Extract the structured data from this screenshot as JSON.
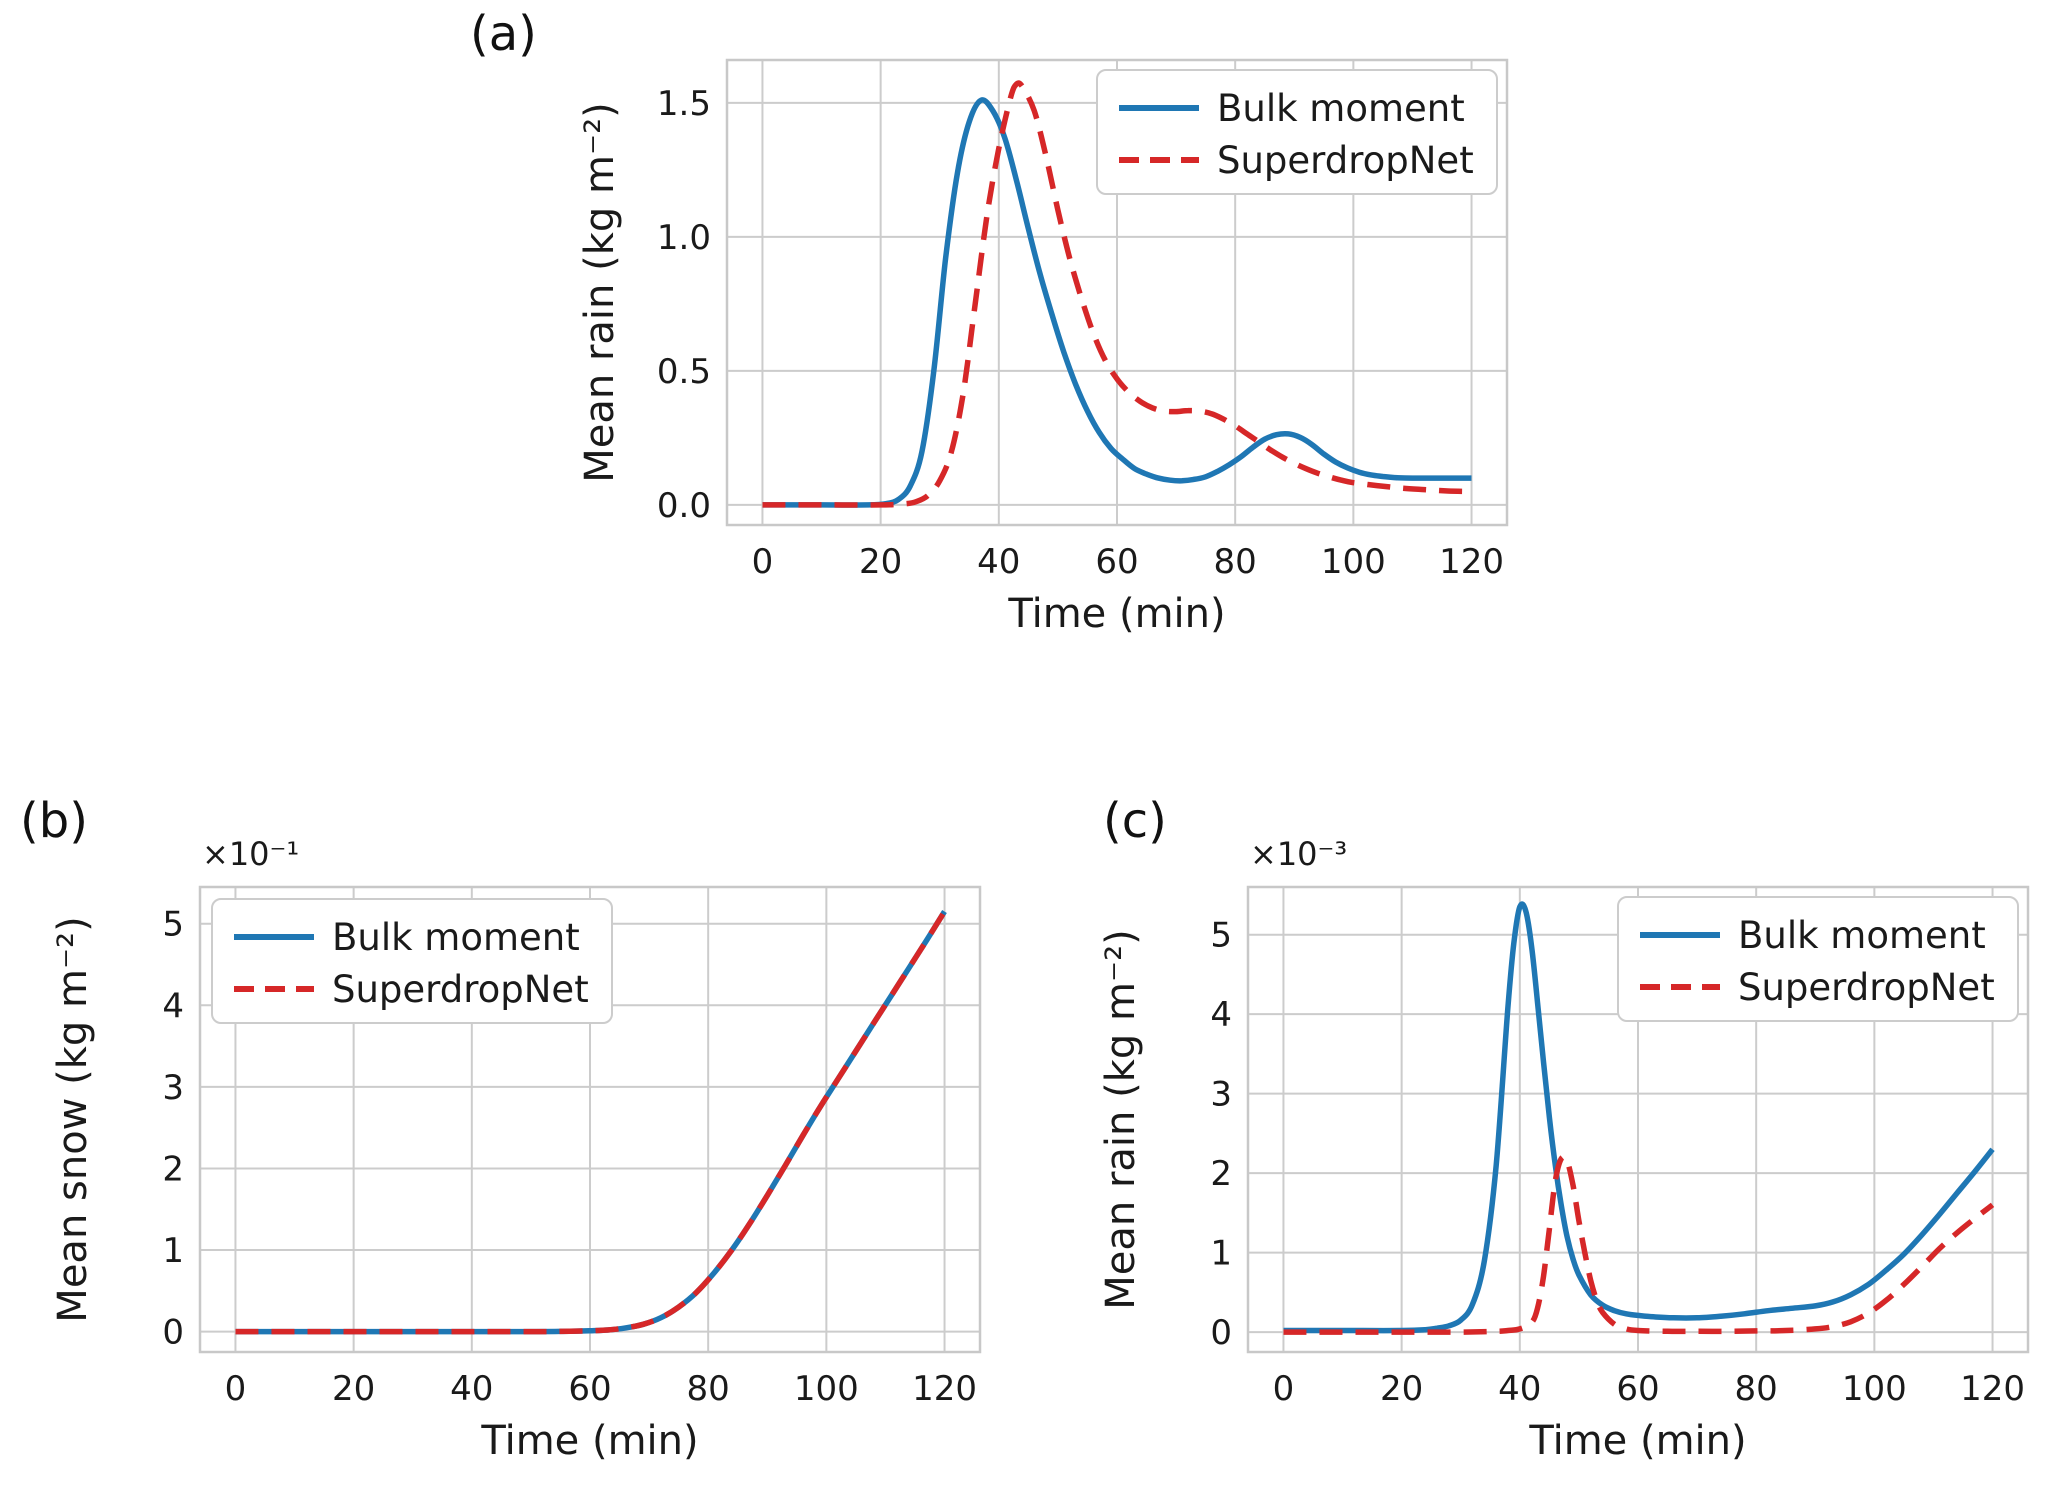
{
  "figure": {
    "background": "#ffffff",
    "text_color": "#1a1a1a",
    "grid_color": "#cccccc",
    "spine_color": "#c8c8c8"
  },
  "chart_data": [
    {
      "id": "a",
      "panel_label": "(a)",
      "type": "line",
      "xlabel": "Time (min)",
      "ylabel": "Mean rain (kg m⁻²)",
      "offset_text": "",
      "xlim": [
        -6,
        126
      ],
      "ylim": [
        -0.075,
        1.66
      ],
      "xticks": [
        0,
        20,
        40,
        60,
        80,
        100,
        120
      ],
      "yticks": [
        0.0,
        0.5,
        1.0,
        1.5
      ],
      "ytick_labels": [
        "0.0",
        "0.5",
        "1.0",
        "1.5"
      ],
      "grid": true,
      "legend": {
        "position": "top-right"
      },
      "series": [
        {
          "name": "Bulk moment",
          "color": "#1f77b4",
          "style": "solid",
          "points": [
            [
              0,
              0
            ],
            [
              10,
              0
            ],
            [
              18,
              0
            ],
            [
              21,
              0.005
            ],
            [
              23,
              0.02
            ],
            [
              25,
              0.07
            ],
            [
              27,
              0.2
            ],
            [
              29,
              0.5
            ],
            [
              31,
              0.92
            ],
            [
              33,
              1.24
            ],
            [
              35,
              1.43
            ],
            [
              37,
              1.51
            ],
            [
              39,
              1.47
            ],
            [
              41,
              1.37
            ],
            [
              43,
              1.21
            ],
            [
              45,
              1.03
            ],
            [
              47,
              0.86
            ],
            [
              49,
              0.71
            ],
            [
              51,
              0.57
            ],
            [
              53,
              0.45
            ],
            [
              55,
              0.35
            ],
            [
              57,
              0.27
            ],
            [
              59,
              0.21
            ],
            [
              61,
              0.17
            ],
            [
              63,
              0.135
            ],
            [
              65,
              0.115
            ],
            [
              67,
              0.1
            ],
            [
              69,
              0.092
            ],
            [
              71,
              0.09
            ],
            [
              73,
              0.095
            ],
            [
              75,
              0.105
            ],
            [
              77,
              0.125
            ],
            [
              79,
              0.15
            ],
            [
              81,
              0.18
            ],
            [
              83,
              0.215
            ],
            [
              85,
              0.245
            ],
            [
              87,
              0.262
            ],
            [
              89,
              0.265
            ],
            [
              91,
              0.252
            ],
            [
              93,
              0.225
            ],
            [
              95,
              0.19
            ],
            [
              97,
              0.16
            ],
            [
              99,
              0.138
            ],
            [
              101,
              0.122
            ],
            [
              103,
              0.112
            ],
            [
              105,
              0.106
            ],
            [
              107,
              0.102
            ],
            [
              110,
              0.1
            ],
            [
              115,
              0.1
            ],
            [
              120,
              0.1
            ]
          ]
        },
        {
          "name": "SuperdropNet",
          "color": "#d62728",
          "style": "dashed",
          "points": [
            [
              0,
              0
            ],
            [
              10,
              0
            ],
            [
              20,
              0
            ],
            [
              24,
              0.004
            ],
            [
              26,
              0.012
            ],
            [
              28,
              0.035
            ],
            [
              30,
              0.09
            ],
            [
              32,
              0.2
            ],
            [
              34,
              0.42
            ],
            [
              36,
              0.75
            ],
            [
              38,
              1.08
            ],
            [
              40,
              1.33
            ],
            [
              42,
              1.52
            ],
            [
              43,
              1.57
            ],
            [
              44,
              1.56
            ],
            [
              46,
              1.47
            ],
            [
              48,
              1.3
            ],
            [
              50,
              1.1
            ],
            [
              52,
              0.92
            ],
            [
              54,
              0.77
            ],
            [
              56,
              0.64
            ],
            [
              58,
              0.54
            ],
            [
              60,
              0.47
            ],
            [
              62,
              0.42
            ],
            [
              64,
              0.385
            ],
            [
              66,
              0.362
            ],
            [
              68,
              0.35
            ],
            [
              70,
              0.348
            ],
            [
              72,
              0.352
            ],
            [
              74,
              0.35
            ],
            [
              76,
              0.34
            ],
            [
              78,
              0.32
            ],
            [
              80,
              0.295
            ],
            [
              82,
              0.265
            ],
            [
              84,
              0.235
            ],
            [
              86,
              0.205
            ],
            [
              88,
              0.178
            ],
            [
              90,
              0.155
            ],
            [
              92,
              0.135
            ],
            [
              94,
              0.118
            ],
            [
              96,
              0.104
            ],
            [
              98,
              0.092
            ],
            [
              100,
              0.083
            ],
            [
              104,
              0.072
            ],
            [
              108,
              0.063
            ],
            [
              112,
              0.057
            ],
            [
              116,
              0.052
            ],
            [
              120,
              0.05
            ]
          ]
        }
      ]
    },
    {
      "id": "b",
      "panel_label": "(b)",
      "type": "line",
      "xlabel": "Time (min)",
      "ylabel": "Mean snow (kg m⁻²)",
      "offset_text": "×10⁻¹",
      "xlim": [
        -6,
        126
      ],
      "ylim": [
        -0.25,
        5.45
      ],
      "xticks": [
        0,
        20,
        40,
        60,
        80,
        100,
        120
      ],
      "yticks": [
        0,
        1,
        2,
        3,
        4,
        5
      ],
      "ytick_labels": [
        "0",
        "1",
        "2",
        "3",
        "4",
        "5"
      ],
      "grid": true,
      "legend": {
        "position": "top-left"
      },
      "series": [
        {
          "name": "Bulk moment",
          "color": "#1f77b4",
          "style": "solid",
          "points": [
            [
              0,
              0
            ],
            [
              10,
              0
            ],
            [
              20,
              0
            ],
            [
              30,
              0
            ],
            [
              40,
              0
            ],
            [
              50,
              0
            ],
            [
              55,
              0.002
            ],
            [
              60,
              0.01
            ],
            [
              63,
              0.02
            ],
            [
              66,
              0.045
            ],
            [
              69,
              0.09
            ],
            [
              72,
              0.17
            ],
            [
              75,
              0.3
            ],
            [
              78,
              0.48
            ],
            [
              81,
              0.72
            ],
            [
              84,
              1.0
            ],
            [
              87,
              1.32
            ],
            [
              90,
              1.67
            ],
            [
              93,
              2.03
            ],
            [
              96,
              2.4
            ],
            [
              99,
              2.76
            ],
            [
              102,
              3.1
            ],
            [
              105,
              3.44
            ],
            [
              108,
              3.78
            ],
            [
              111,
              4.12
            ],
            [
              114,
              4.46
            ],
            [
              117,
              4.8
            ],
            [
              120,
              5.15
            ]
          ]
        },
        {
          "name": "SuperdropNet",
          "color": "#d62728",
          "style": "dashed",
          "points": [
            [
              0,
              0
            ],
            [
              10,
              0
            ],
            [
              20,
              0
            ],
            [
              30,
              0
            ],
            [
              40,
              0
            ],
            [
              50,
              0
            ],
            [
              55,
              0.002
            ],
            [
              60,
              0.01
            ],
            [
              63,
              0.02
            ],
            [
              66,
              0.045
            ],
            [
              69,
              0.09
            ],
            [
              72,
              0.17
            ],
            [
              75,
              0.3
            ],
            [
              78,
              0.48
            ],
            [
              81,
              0.72
            ],
            [
              84,
              1.0
            ],
            [
              87,
              1.32
            ],
            [
              90,
              1.67
            ],
            [
              93,
              2.03
            ],
            [
              96,
              2.4
            ],
            [
              99,
              2.76
            ],
            [
              102,
              3.1
            ],
            [
              105,
              3.44
            ],
            [
              108,
              3.78
            ],
            [
              111,
              4.12
            ],
            [
              114,
              4.46
            ],
            [
              117,
              4.8
            ],
            [
              120,
              5.15
            ]
          ]
        }
      ]
    },
    {
      "id": "c",
      "panel_label": "(c)",
      "type": "line",
      "xlabel": "Time (min)",
      "ylabel": "Mean rain (kg m⁻²)",
      "offset_text": "×10⁻³",
      "xlim": [
        -6,
        126
      ],
      "ylim": [
        -0.25,
        5.6
      ],
      "xticks": [
        0,
        20,
        40,
        60,
        80,
        100,
        120
      ],
      "yticks": [
        0,
        1,
        2,
        3,
        4,
        5
      ],
      "ytick_labels": [
        "0",
        "1",
        "2",
        "3",
        "4",
        "5"
      ],
      "grid": true,
      "legend": {
        "position": "top-right"
      },
      "series": [
        {
          "name": "Bulk moment",
          "color": "#1f77b4",
          "style": "solid",
          "points": [
            [
              0,
              0.02
            ],
            [
              10,
              0.02
            ],
            [
              20,
              0.02
            ],
            [
              24,
              0.03
            ],
            [
              26,
              0.05
            ],
            [
              28,
              0.08
            ],
            [
              30,
              0.15
            ],
            [
              32,
              0.35
            ],
            [
              34,
              0.9
            ],
            [
              36,
              2.1
            ],
            [
              38,
              4.1
            ],
            [
              39,
              4.9
            ],
            [
              40,
              5.35
            ],
            [
              41,
              5.3
            ],
            [
              42,
              4.85
            ],
            [
              43,
              4.15
            ],
            [
              44,
              3.4
            ],
            [
              45,
              2.7
            ],
            [
              46,
              2.1
            ],
            [
              47,
              1.6
            ],
            [
              48,
              1.2
            ],
            [
              49,
              0.92
            ],
            [
              50,
              0.72
            ],
            [
              52,
              0.47
            ],
            [
              54,
              0.34
            ],
            [
              56,
              0.27
            ],
            [
              58,
              0.23
            ],
            [
              60,
              0.21
            ],
            [
              63,
              0.19
            ],
            [
              66,
              0.18
            ],
            [
              70,
              0.18
            ],
            [
              74,
              0.2
            ],
            [
              78,
              0.23
            ],
            [
              82,
              0.27
            ],
            [
              86,
              0.3
            ],
            [
              90,
              0.33
            ],
            [
              93,
              0.38
            ],
            [
              96,
              0.47
            ],
            [
              99,
              0.6
            ],
            [
              102,
              0.78
            ],
            [
              105,
              0.98
            ],
            [
              108,
              1.22
            ],
            [
              111,
              1.48
            ],
            [
              114,
              1.75
            ],
            [
              117,
              2.02
            ],
            [
              120,
              2.3
            ]
          ]
        },
        {
          "name": "SuperdropNet",
          "color": "#d62728",
          "style": "dashed",
          "points": [
            [
              0,
              0
            ],
            [
              10,
              0
            ],
            [
              20,
              0
            ],
            [
              30,
              0
            ],
            [
              36,
              0.01
            ],
            [
              38,
              0.02
            ],
            [
              40,
              0.04
            ],
            [
              42,
              0.12
            ],
            [
              43,
              0.3
            ],
            [
              44,
              0.7
            ],
            [
              45,
              1.3
            ],
            [
              46,
              1.9
            ],
            [
              47,
              2.18
            ],
            [
              48,
              2.15
            ],
            [
              49,
              1.85
            ],
            [
              50,
              1.4
            ],
            [
              51,
              1.0
            ],
            [
              52,
              0.65
            ],
            [
              53,
              0.4
            ],
            [
              54,
              0.25
            ],
            [
              56,
              0.1
            ],
            [
              58,
              0.04
            ],
            [
              60,
              0.02
            ],
            [
              65,
              0.01
            ],
            [
              70,
              0.01
            ],
            [
              75,
              0.01
            ],
            [
              80,
              0.015
            ],
            [
              85,
              0.02
            ],
            [
              90,
              0.04
            ],
            [
              93,
              0.07
            ],
            [
              96,
              0.13
            ],
            [
              99,
              0.24
            ],
            [
              102,
              0.4
            ],
            [
              105,
              0.6
            ],
            [
              108,
              0.82
            ],
            [
              111,
              1.05
            ],
            [
              114,
              1.25
            ],
            [
              117,
              1.43
            ],
            [
              120,
              1.6
            ]
          ]
        }
      ]
    }
  ]
}
